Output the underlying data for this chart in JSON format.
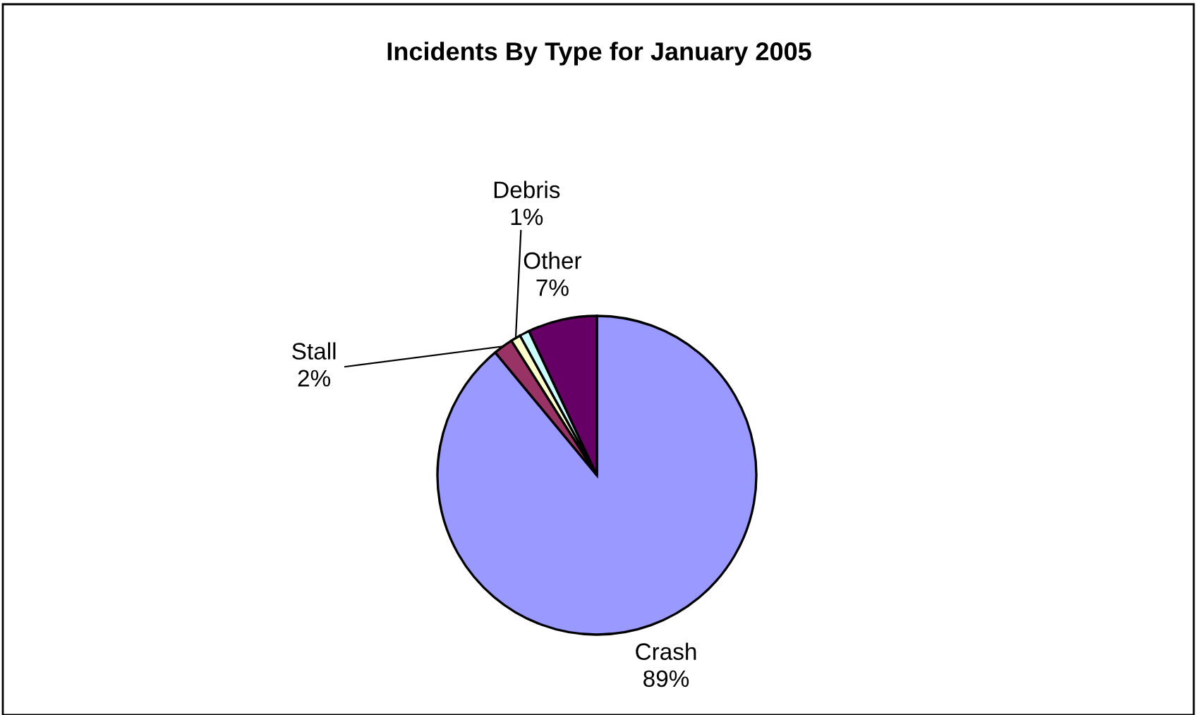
{
  "chart_data": {
    "type": "pie",
    "title": "Incidents By Type for January 2005",
    "categories": [
      "Crash",
      "Stall",
      "Debris",
      null,
      "Other"
    ],
    "values": [
      89,
      2,
      1,
      1,
      7
    ],
    "colors": [
      "#9999ff",
      "#993366",
      "#ffffcc",
      "#ccffff",
      "#660066"
    ],
    "value_labels": [
      "89%",
      "2%",
      "1%",
      null,
      "7%"
    ],
    "legend": false
  }
}
